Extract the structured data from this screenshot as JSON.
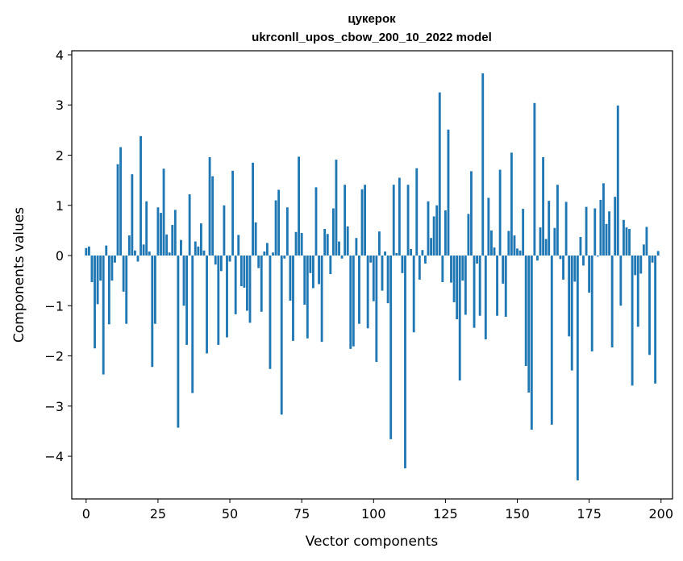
{
  "chart_data": {
    "type": "bar",
    "title": "цукерок",
    "subtitle": "ukrconll_upos_cbow_200_10_2022 model",
    "xlabel": "Vector components",
    "ylabel": "Components values",
    "xlim": [
      -5,
      204
    ],
    "ylim": [
      -4.85,
      4.08
    ],
    "xticks": [
      0,
      25,
      50,
      75,
      100,
      125,
      150,
      175,
      200
    ],
    "yticks": [
      -4,
      -3,
      -2,
      -1,
      0,
      1,
      2,
      3,
      4
    ],
    "bar_color": "#1f77b4",
    "x": [
      0,
      1,
      2,
      3,
      4,
      5,
      6,
      7,
      8,
      9,
      10,
      11,
      12,
      13,
      14,
      15,
      16,
      17,
      18,
      19,
      20,
      21,
      22,
      23,
      24,
      25,
      26,
      27,
      28,
      29,
      30,
      31,
      32,
      33,
      34,
      35,
      36,
      37,
      38,
      39,
      40,
      41,
      42,
      43,
      44,
      45,
      46,
      47,
      48,
      49,
      50,
      51,
      52,
      53,
      54,
      55,
      56,
      57,
      58,
      59,
      60,
      61,
      62,
      63,
      64,
      65,
      66,
      67,
      68,
      69,
      70,
      71,
      72,
      73,
      74,
      75,
      76,
      77,
      78,
      79,
      80,
      81,
      82,
      83,
      84,
      85,
      86,
      87,
      88,
      89,
      90,
      91,
      92,
      93,
      94,
      95,
      96,
      97,
      98,
      99,
      100,
      101,
      102,
      103,
      104,
      105,
      106,
      107,
      108,
      109,
      110,
      111,
      112,
      113,
      114,
      115,
      116,
      117,
      118,
      119,
      120,
      121,
      122,
      123,
      124,
      125,
      126,
      127,
      128,
      129,
      130,
      131,
      132,
      133,
      134,
      135,
      136,
      137,
      138,
      139,
      140,
      141,
      142,
      143,
      144,
      145,
      146,
      147,
      148,
      149,
      150,
      151,
      152,
      153,
      154,
      155,
      156,
      157,
      158,
      159,
      160,
      161,
      162,
      163,
      164,
      165,
      166,
      167,
      168,
      169,
      170,
      171,
      172,
      173,
      174,
      175,
      176,
      177,
      178,
      179,
      180,
      181,
      182,
      183,
      184,
      185,
      186,
      187,
      188,
      189,
      190,
      191,
      192,
      193,
      194,
      195,
      196,
      197,
      198,
      199
    ],
    "values": [
      0.15,
      0.18,
      -0.53,
      -1.85,
      -0.97,
      -0.5,
      -2.37,
      0.2,
      -1.37,
      -0.5,
      -0.14,
      1.82,
      2.16,
      -0.72,
      -1.36,
      0.4,
      1.62,
      0.1,
      -0.12,
      2.38,
      0.22,
      1.08,
      0.08,
      -2.22,
      -1.36,
      0.96,
      0.85,
      1.73,
      0.42,
      0.06,
      0.61,
      0.91,
      -3.43,
      0.31,
      -1.0,
      -1.78,
      1.22,
      -2.74,
      0.28,
      0.18,
      0.64,
      0.1,
      -1.95,
      1.96,
      1.58,
      -0.18,
      -1.78,
      -0.31,
      1.0,
      -1.63,
      -0.12,
      1.69,
      -1.17,
      0.41,
      -0.61,
      -0.64,
      -1.1,
      -1.34,
      1.85,
      0.66,
      -0.25,
      -1.12,
      0.08,
      0.25,
      -2.26,
      0.06,
      1.1,
      1.31,
      -3.17,
      -0.06,
      0.96,
      -0.9,
      -1.7,
      0.47,
      1.97,
      0.45,
      -0.98,
      -1.65,
      -0.35,
      -0.65,
      1.36,
      -0.57,
      -1.72,
      0.53,
      0.43,
      -0.37,
      0.94,
      1.91,
      0.28,
      -0.06,
      1.41,
      0.58,
      -1.86,
      -1.81,
      0.35,
      -1.36,
      1.32,
      1.41,
      -1.45,
      -0.14,
      -0.91,
      -2.12,
      0.48,
      -0.7,
      0.08,
      -0.95,
      -3.66,
      1.41,
      0.05,
      1.55,
      -0.35,
      -4.24,
      1.41,
      0.13,
      -1.53,
      1.74,
      -0.48,
      0.11,
      -0.16,
      1.08,
      0.35,
      0.78,
      1.0,
      3.25,
      -0.53,
      0.9,
      2.51,
      -0.54,
      -0.93,
      -1.27,
      -2.49,
      -0.5,
      -1.18,
      0.83,
      1.68,
      -1.44,
      -0.16,
      -1.2,
      3.63,
      -1.67,
      1.15,
      0.5,
      0.16,
      -1.2,
      1.71,
      -0.56,
      -1.22,
      0.49,
      2.05,
      0.4,
      0.14,
      0.1,
      0.93,
      -2.2,
      -2.73,
      -3.47,
      3.04,
      -0.1,
      0.56,
      1.96,
      0.33,
      1.09,
      -3.37,
      0.55,
      1.41,
      -0.07,
      -0.48,
      1.07,
      -1.61,
      -2.29,
      -0.52,
      -4.48,
      0.37,
      -0.2,
      0.97,
      -0.74,
      -1.91,
      0.94,
      -0.02,
      1.11,
      1.44,
      0.63,
      0.88,
      -1.83,
      1.17,
      2.99,
      -1.0,
      0.71,
      0.56,
      0.53,
      -2.59,
      -0.39,
      -1.42,
      -0.36,
      0.22,
      0.57,
      -1.98,
      -0.14,
      -2.55,
      0.09
    ]
  }
}
